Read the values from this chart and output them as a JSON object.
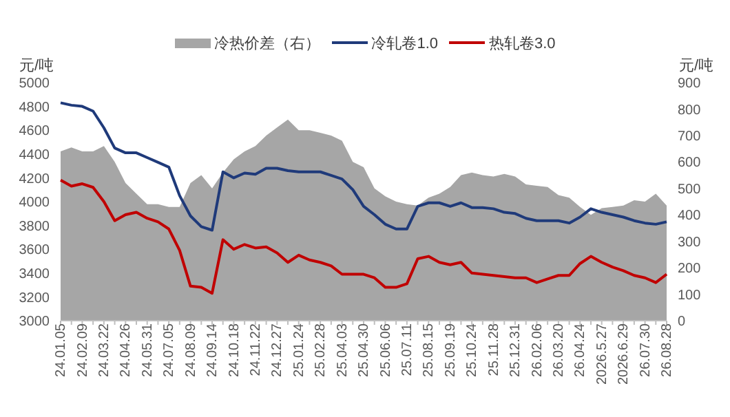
{
  "chart_data": {
    "type": "line",
    "ylabel": "元/吨",
    "y2label": "元/吨",
    "legend": "top",
    "grid": false,
    "marker": "none",
    "categories": [
      "24.01.05",
      null,
      "24.02.09",
      null,
      "24.03.22",
      null,
      "24.04.26",
      null,
      "24.05.31",
      null,
      "24.07.05",
      null,
      "24.08.09",
      null,
      "24.09.14",
      null,
      "24.10.18",
      null,
      "24.11.22",
      null,
      "24.12.27",
      null,
      "25.01.24",
      null,
      "25.02.28",
      null,
      "25.04.03",
      null,
      "25.04.30",
      null,
      "25.06.06",
      null,
      "25.07.11",
      null,
      "25.08.15",
      null,
      "25.09.19",
      null,
      "25.10.24",
      null,
      "25.11.28",
      null,
      "25.12.31",
      null,
      "26.02.06",
      null,
      "26.03.20",
      null,
      "26.04.24",
      null,
      "2026.5.27",
      null,
      "2026.6.29",
      null,
      "26.07.30",
      null,
      "26.08.28"
    ],
    "ylim": [
      3000,
      5000
    ],
    "yticks": [
      3000,
      3200,
      3400,
      3600,
      3800,
      4000,
      4200,
      4400,
      4600,
      4800,
      5000
    ],
    "y2lim": [
      0,
      900
    ],
    "y2ticks": [
      0,
      100,
      200,
      300,
      400,
      500,
      600,
      700,
      800,
      900
    ],
    "series": [
      {
        "name": "冷热价差（右）",
        "type": "area",
        "axis": "y2",
        "color": "#a6a6a6",
        "values": [
          640,
          655,
          640,
          640,
          660,
          600,
          520,
          480,
          440,
          440,
          430,
          430,
          520,
          550,
          500,
          560,
          610,
          640,
          660,
          700,
          730,
          760,
          720,
          720,
          710,
          700,
          680,
          600,
          580,
          500,
          470,
          450,
          440,
          435,
          465,
          480,
          505,
          550,
          560,
          550,
          545,
          555,
          545,
          515,
          510,
          505,
          475,
          465,
          430,
          400,
          425,
          430,
          435,
          455,
          450,
          480,
          435
        ]
      },
      {
        "name": "冷轧卷1.0",
        "color": "#1f3a7a",
        "values": [
          4830,
          4810,
          4800,
          4760,
          4620,
          4450,
          4410,
          4410,
          4370,
          4330,
          4290,
          4050,
          3880,
          3790,
          3760,
          4250,
          4200,
          4240,
          4230,
          4280,
          4280,
          4260,
          4250,
          4250,
          4250,
          4220,
          4190,
          4100,
          3960,
          3890,
          3810,
          3770,
          3770,
          3960,
          3990,
          3990,
          3960,
          3990,
          3950,
          3950,
          3940,
          3910,
          3900,
          3860,
          3840,
          3840,
          3840,
          3820,
          3870,
          3940,
          3910,
          3890,
          3870,
          3840,
          3820,
          3810,
          3830
        ]
      },
      {
        "name": "热轧卷3.0",
        "color": "#c00000",
        "values": [
          4180,
          4130,
          4150,
          4120,
          4000,
          3840,
          3890,
          3910,
          3860,
          3830,
          3770,
          3590,
          3290,
          3280,
          3230,
          3680,
          3600,
          3640,
          3610,
          3620,
          3570,
          3490,
          3550,
          3510,
          3490,
          3460,
          3390,
          3390,
          3390,
          3360,
          3280,
          3280,
          3310,
          3520,
          3540,
          3490,
          3470,
          3490,
          3400,
          3390,
          3380,
          3370,
          3360,
          3360,
          3320,
          3350,
          3380,
          3380,
          3480,
          3540,
          3490,
          3450,
          3420,
          3380,
          3360,
          3320,
          3390
        ]
      }
    ]
  }
}
